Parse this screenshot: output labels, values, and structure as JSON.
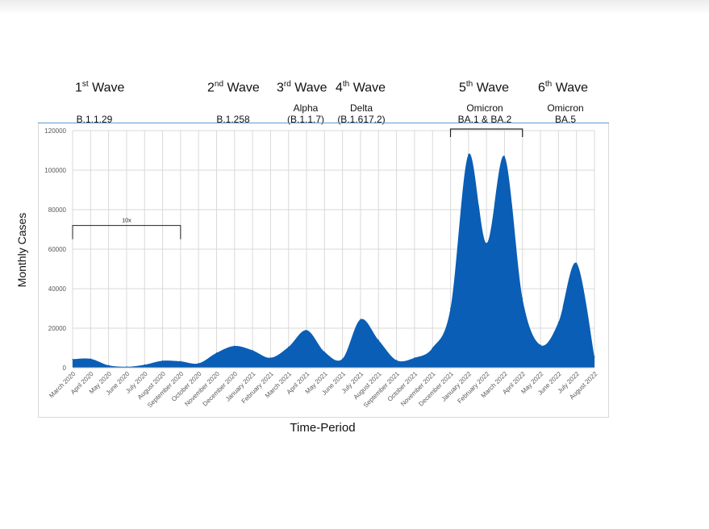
{
  "chart_data": {
    "type": "area",
    "title": "",
    "xlabel": "Time-Period",
    "ylabel": "Monthly Cases",
    "ylim": [
      0,
      120000
    ],
    "yticks": [
      0,
      20000,
      40000,
      60000,
      80000,
      100000,
      120000
    ],
    "grid": true,
    "fill_color": "#0a5eb5",
    "categories": [
      "March 2020",
      "April 2020",
      "May 2020",
      "June 2020",
      "July 2020",
      "August 2020",
      "September 2020",
      "October 2020",
      "November 2020",
      "December 2020",
      "January 2021",
      "February 2021",
      "March 2021",
      "April 2021",
      "May 2021",
      "June 2021",
      "July 2021",
      "August 2021",
      "September 2021",
      "October 2021",
      "November 2021",
      "December 2021",
      "January 2022",
      "February 2022",
      "March 2022",
      "April 2022",
      "May 2022",
      "June 2022",
      "July 2022",
      "August 2022"
    ],
    "series": [
      {
        "values": [
          4300,
          4500,
          1200,
          500,
          1500,
          3500,
          3200,
          2200,
          7500,
          11000,
          8800,
          5000,
          10500,
          19000,
          8000,
          4500,
          24500,
          14000,
          3800,
          5000,
          10000,
          30000,
          108000,
          63000,
          107000,
          35000,
          11500,
          23000,
          53000,
          5500
        ]
      }
    ],
    "annotations": [
      {
        "label": "10x",
        "from": "March 2020",
        "to": "September 2020",
        "y": 72000
      }
    ]
  },
  "waves": [
    {
      "ord": "1",
      "sup": "st",
      "word": "Wave",
      "variant": [
        "B.1.1.29"
      ]
    },
    {
      "ord": "2",
      "sup": "nd",
      "word": "Wave",
      "variant": [
        "B.1.258"
      ]
    },
    {
      "ord": "3",
      "sup": "rd",
      "word": "Wave",
      "variant": [
        "Alpha",
        "(B.1.1.7)"
      ]
    },
    {
      "ord": "4",
      "sup": "th",
      "word": "Wave",
      "variant": [
        "Delta",
        "(B.1.617.2)"
      ]
    },
    {
      "ord": "5",
      "sup": "th",
      "word": "Wave",
      "variant": [
        "Omicron",
        "BA.1 & BA.2"
      ]
    },
    {
      "ord": "6",
      "sup": "th",
      "word": "Wave",
      "variant": [
        "Omicron",
        "BA.5"
      ]
    }
  ]
}
